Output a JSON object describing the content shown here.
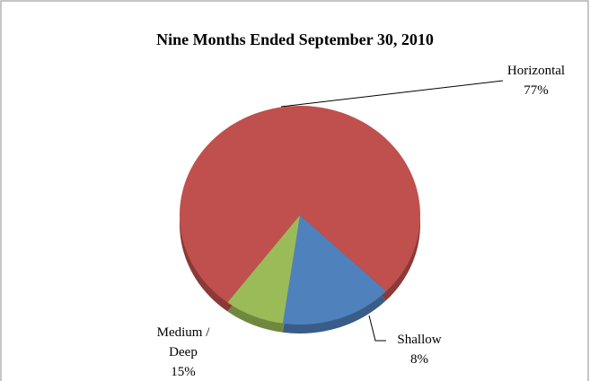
{
  "chart_data": {
    "type": "pie",
    "title": "Nine Months Ended September 30, 2010",
    "categories": [
      "Horizontal",
      "Medium / Deep",
      "Shallow"
    ],
    "values": [
      77,
      15,
      8
    ],
    "value_labels": [
      "77%",
      "15%",
      "8%"
    ],
    "colors": [
      "#c0504d",
      "#4f81bd",
      "#9bbb59"
    ]
  }
}
